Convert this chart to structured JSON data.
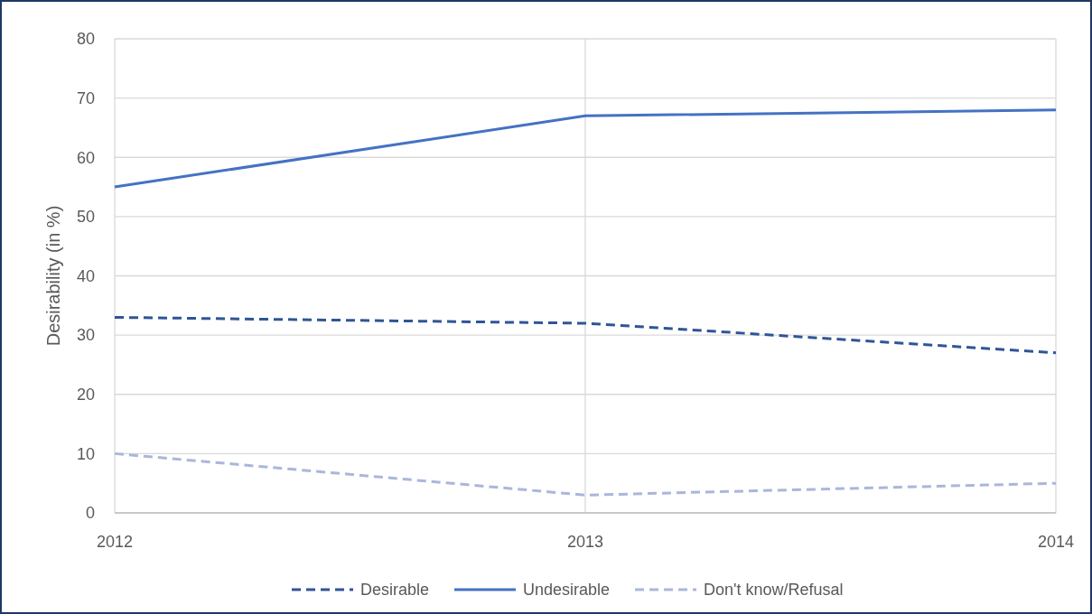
{
  "chart_data": {
    "type": "line",
    "ylabel": "Desirability (in %)",
    "x": [
      2012,
      2013,
      2014
    ],
    "xlim": [
      2012,
      2014
    ],
    "xticks": [
      2012,
      2013,
      2014
    ],
    "ylim": [
      0,
      80
    ],
    "yticks": [
      0,
      10,
      20,
      30,
      40,
      50,
      60,
      70,
      80
    ],
    "grid": true,
    "legend": "bottom",
    "marker": "none",
    "series": [
      {
        "name": "Desirable",
        "color": "#2f5597",
        "line_style": "dashed",
        "values": [
          33,
          32,
          27
        ]
      },
      {
        "name": "Undesirable",
        "color": "#4472c4",
        "line_style": "solid",
        "values": [
          55,
          67,
          68
        ]
      },
      {
        "name": "Don't know/Refusal",
        "color": "#a9b7dc",
        "line_style": "dashed",
        "values": [
          10,
          3,
          5
        ]
      }
    ]
  }
}
